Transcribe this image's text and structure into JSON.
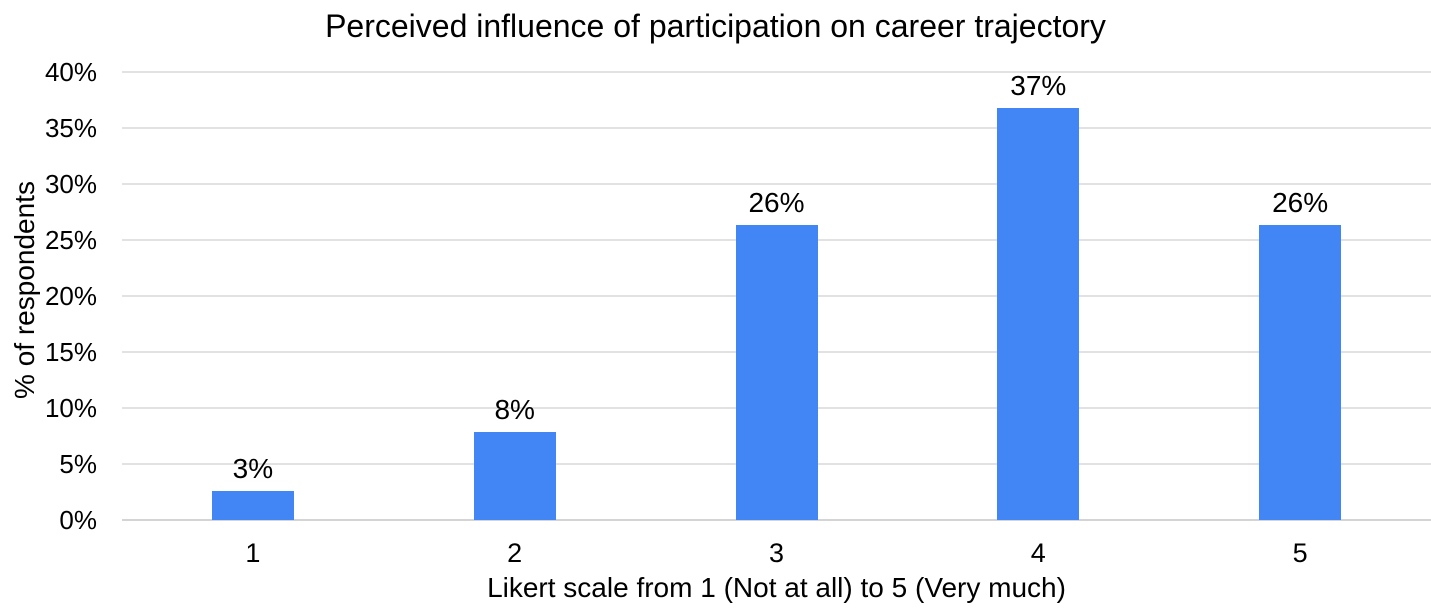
{
  "chart_data": {
    "type": "bar",
    "title": "Perceived influence of participation on career trajectory",
    "xlabel": "Likert scale from 1 (Not at all) to 5 (Very much)",
    "ylabel": "% of respondents",
    "categories": [
      "1",
      "2",
      "3",
      "4",
      "5"
    ],
    "values": [
      2.6,
      7.9,
      26.3,
      36.8,
      26.3
    ],
    "bar_labels": [
      "3%",
      "8%",
      "26%",
      "37%",
      "26%"
    ],
    "ytick_labels": [
      "0%",
      "5%",
      "10%",
      "15%",
      "20%",
      "25%",
      "30%",
      "35%",
      "40%"
    ],
    "ylim": [
      0,
      40
    ],
    "ytick_step": 5,
    "grid": true,
    "legend": false,
    "colors": {
      "bar": "#4285f4",
      "gridline": "#e2e2e2",
      "axis_line": "#d4d4d4",
      "text": "#000000",
      "background": "#ffffff"
    }
  }
}
